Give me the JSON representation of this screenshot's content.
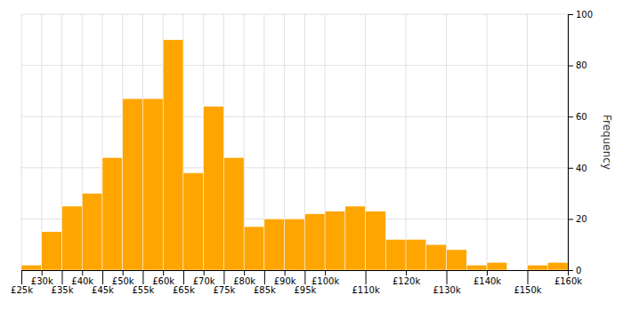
{
  "chart_data": {
    "type": "histogram",
    "bins": [
      25000,
      30000,
      35000,
      40000,
      45000,
      50000,
      55000,
      60000,
      65000,
      70000,
      75000,
      80000,
      85000,
      90000,
      95000,
      100000,
      105000,
      110000,
      115000,
      120000,
      125000,
      130000,
      135000,
      140000,
      145000,
      150000,
      155000,
      160000
    ],
    "values": [
      2,
      15,
      25,
      30,
      44,
      67,
      67,
      90,
      38,
      64,
      44,
      17,
      20,
      20,
      22,
      23,
      25,
      23,
      12,
      12,
      10,
      8,
      2,
      3,
      0,
      2,
      3
    ],
    "color": "#FFA500",
    "ylabel": "Frequency",
    "xlim": [
      25000,
      160000
    ],
    "xticks": [
      {
        "value": 25000,
        "label": "£25k"
      },
      {
        "value": 30000,
        "label": "£30k"
      },
      {
        "value": 35000,
        "label": "£35k"
      },
      {
        "value": 40000,
        "label": "£40k"
      },
      {
        "value": 45000,
        "label": "£45k"
      },
      {
        "value": 50000,
        "label": "£50k"
      },
      {
        "value": 55000,
        "label": "£55k"
      },
      {
        "value": 60000,
        "label": "£60k"
      },
      {
        "value": 65000,
        "label": "£65k"
      },
      {
        "value": 70000,
        "label": "£70k"
      },
      {
        "value": 75000,
        "label": "£75k"
      },
      {
        "value": 80000,
        "label": "£80k"
      },
      {
        "value": 85000,
        "label": "£85k"
      },
      {
        "value": 90000,
        "label": "£90k"
      },
      {
        "value": 95000,
        "label": "£95k"
      },
      {
        "value": 100000,
        "label": "£100k"
      },
      {
        "value": 110000,
        "label": "£110k"
      },
      {
        "value": 120000,
        "label": "£120k"
      },
      {
        "value": 130000,
        "label": "£130k"
      },
      {
        "value": 140000,
        "label": "£140k"
      },
      {
        "value": 150000,
        "label": "£150k"
      },
      {
        "value": 160000,
        "label": "£160k"
      }
    ],
    "ylim": [
      0,
      100
    ],
    "yticks": [
      0,
      20,
      40,
      60,
      80,
      100
    ],
    "grid": true
  }
}
